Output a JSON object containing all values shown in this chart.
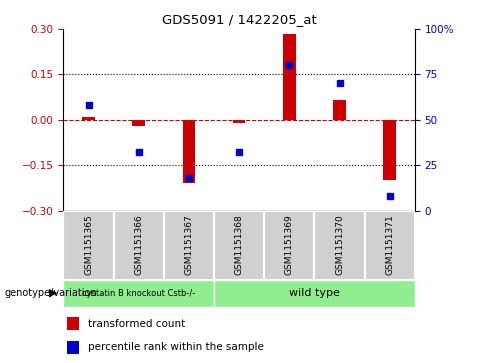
{
  "title": "GDS5091 / 1422205_at",
  "samples": [
    "GSM1151365",
    "GSM1151366",
    "GSM1151367",
    "GSM1151368",
    "GSM1151369",
    "GSM1151370",
    "GSM1151371"
  ],
  "red_bars": [
    0.01,
    -0.02,
    -0.21,
    -0.01,
    0.285,
    0.065,
    -0.2
  ],
  "blue_dots": [
    0.58,
    0.32,
    0.18,
    0.32,
    0.8,
    0.7,
    0.08
  ],
  "ylim_left": [
    -0.3,
    0.3
  ],
  "yticks_left": [
    -0.3,
    -0.15,
    0.0,
    0.15,
    0.3
  ],
  "yticks_right": [
    0,
    25,
    50,
    75,
    100
  ],
  "group1_label": "cystatin B knockout Cstb-/-",
  "group2_label": "wild type",
  "group1_indices": [
    0,
    1,
    2
  ],
  "group2_indices": [
    3,
    4,
    5,
    6
  ],
  "group1_color": "#90EE90",
  "group2_color": "#90EE90",
  "bar_color": "#cc0000",
  "dot_color": "#0000cc",
  "zero_line_color": "#cc0000",
  "bg_color": "#ffffff",
  "plot_bg": "#ffffff",
  "genotype_label": "genotype/variation",
  "legend1": "transformed count",
  "legend2": "percentile rank within the sample",
  "bar_width": 0.25
}
